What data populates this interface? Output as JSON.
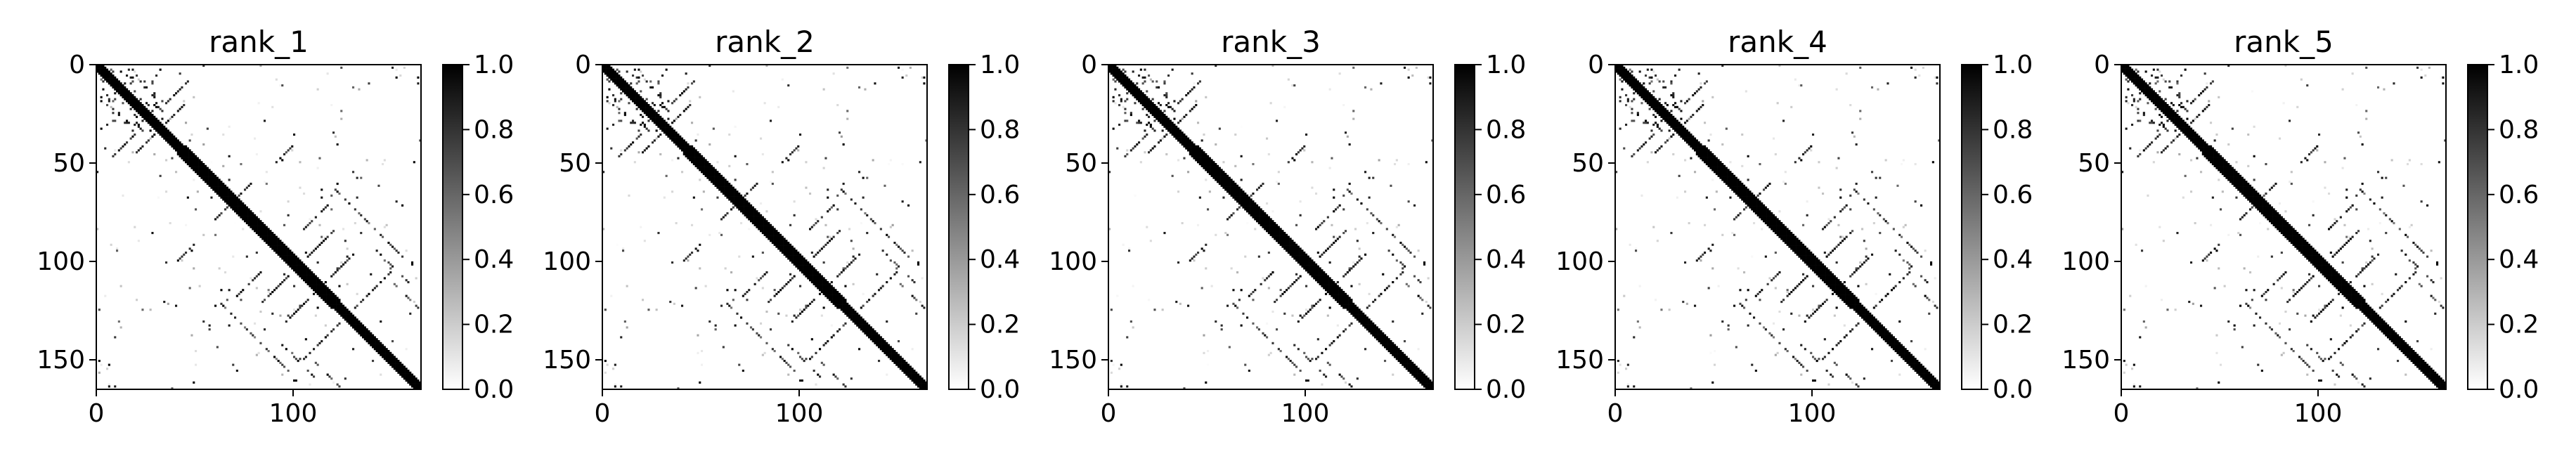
{
  "chart_data": [
    {
      "type": "heatmap",
      "title": "rank_1",
      "size": 165,
      "xticks": [
        0,
        100
      ],
      "yticks": [
        0,
        50,
        100,
        150
      ],
      "colorbar": {
        "min": 0.0,
        "max": 1.0,
        "ticks": [
          "0.0",
          "0.2",
          "0.4",
          "0.6",
          "0.8",
          "1.0"
        ]
      },
      "colormap": [
        "#ffffff",
        "#000000"
      ],
      "pattern": "protein contact map: dense main diagonal band plus sparse off-diagonal contact clusters"
    },
    {
      "type": "heatmap",
      "title": "rank_2",
      "size": 165,
      "xticks": [
        0,
        100
      ],
      "yticks": [
        0,
        50,
        100,
        150
      ],
      "colorbar": {
        "min": 0.0,
        "max": 1.0,
        "ticks": [
          "0.0",
          "0.2",
          "0.4",
          "0.6",
          "0.8",
          "1.0"
        ]
      },
      "colormap": [
        "#ffffff",
        "#000000"
      ],
      "pattern": "protein contact map: dense main diagonal band plus sparse off-diagonal contact clusters"
    },
    {
      "type": "heatmap",
      "title": "rank_3",
      "size": 165,
      "xticks": [
        0,
        100
      ],
      "yticks": [
        0,
        50,
        100,
        150
      ],
      "colorbar": {
        "min": 0.0,
        "max": 1.0,
        "ticks": [
          "0.0",
          "0.2",
          "0.4",
          "0.6",
          "0.8",
          "1.0"
        ]
      },
      "colormap": [
        "#ffffff",
        "#000000"
      ],
      "pattern": "protein contact map: dense main diagonal band plus sparse off-diagonal contact clusters"
    },
    {
      "type": "heatmap",
      "title": "rank_4",
      "size": 165,
      "xticks": [
        0,
        100
      ],
      "yticks": [
        0,
        50,
        100,
        150
      ],
      "colorbar": {
        "min": 0.0,
        "max": 1.0,
        "ticks": [
          "0.0",
          "0.2",
          "0.4",
          "0.6",
          "0.8",
          "1.0"
        ]
      },
      "colormap": [
        "#ffffff",
        "#000000"
      ],
      "pattern": "protein contact map: dense main diagonal band plus sparse off-diagonal contact clusters"
    },
    {
      "type": "heatmap",
      "title": "rank_5",
      "size": 165,
      "xticks": [
        0,
        100
      ],
      "yticks": [
        0,
        50,
        100,
        150
      ],
      "colorbar": {
        "min": 0.0,
        "max": 1.0,
        "ticks": [
          "0.0",
          "0.2",
          "0.4",
          "0.6",
          "0.8",
          "1.0"
        ]
      },
      "colormap": [
        "#ffffff",
        "#000000"
      ],
      "pattern": "protein contact map: dense main diagonal band plus sparse off-diagonal contact clusters"
    }
  ]
}
